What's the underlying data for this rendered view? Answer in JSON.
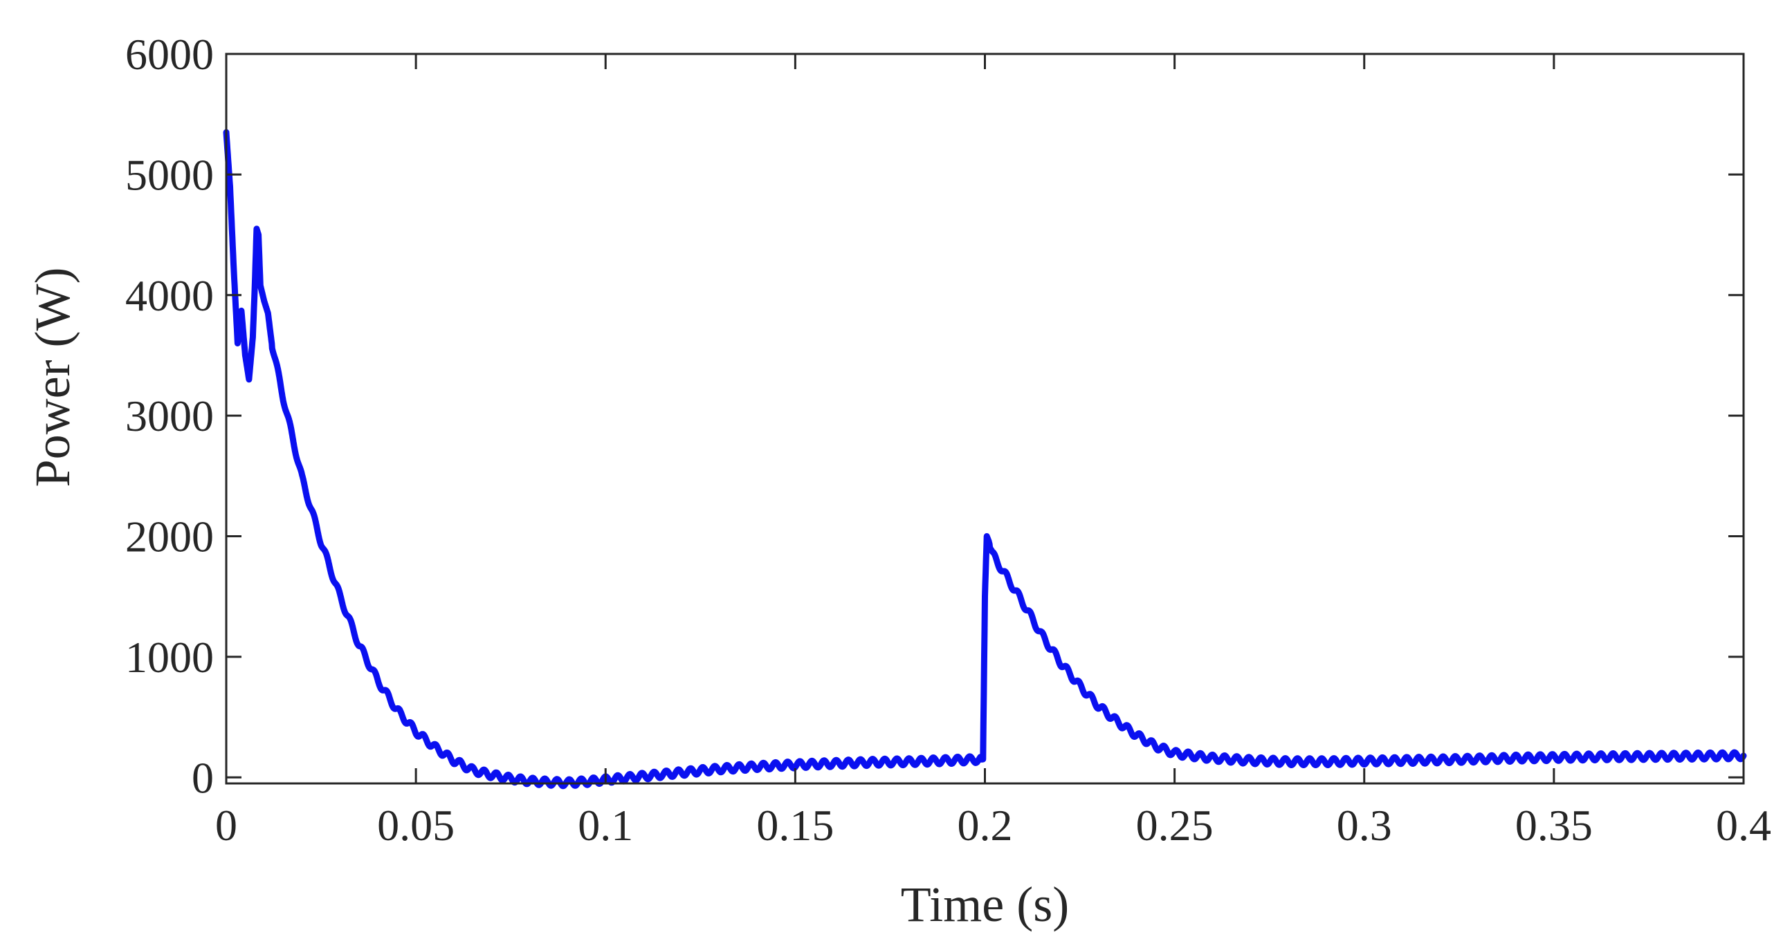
{
  "chart_data": {
    "type": "line",
    "title": "",
    "xlabel": "Time (s)",
    "ylabel": "Power (W)",
    "xlim": [
      0,
      0.4
    ],
    "ylim": [
      -50,
      6000
    ],
    "xticks": [
      0,
      0.05,
      0.1,
      0.15,
      0.2,
      0.25,
      0.3,
      0.35,
      0.4
    ],
    "xtick_labels": [
      "0",
      "0.05",
      "0.1",
      "0.15",
      "0.2",
      "0.25",
      "0.3",
      "0.35",
      "0.4"
    ],
    "yticks": [
      0,
      1000,
      2000,
      3000,
      4000,
      5000,
      6000
    ],
    "ytick_labels": [
      "0",
      "1000",
      "2000",
      "3000",
      "4000",
      "5000",
      "6000"
    ],
    "grid": false,
    "box": true,
    "line_color": "#0a10f0",
    "axis_color": "#262626",
    "series": [
      {
        "x": [
          0,
          0.001,
          0.002,
          0.003,
          0.004,
          0.005,
          0.006,
          0.007,
          0.0075,
          0.008,
          0.0085,
          0.009,
          0.01,
          0.011,
          0.012,
          0.015,
          0.02,
          0.025,
          0.03,
          0.035,
          0.04,
          0.045,
          0.05,
          0.055,
          0.06,
          0.065,
          0.07,
          0.075,
          0.08,
          0.085,
          0.09,
          0.095,
          0.1,
          0.11,
          0.12,
          0.13,
          0.14,
          0.15,
          0.16,
          0.17,
          0.18,
          0.19,
          0.1995,
          0.2,
          0.2005,
          0.201,
          0.2015,
          0.202,
          0.203,
          0.205,
          0.21,
          0.215,
          0.22,
          0.225,
          0.23,
          0.235,
          0.24,
          0.245,
          0.25,
          0.26,
          0.27,
          0.28,
          0.29,
          0.3,
          0.32,
          0.34,
          0.36,
          0.38,
          0.4
        ],
        "y": [
          5350,
          4900,
          4200,
          3600,
          3870,
          3500,
          3300,
          3650,
          4050,
          4550,
          4500,
          4080,
          3950,
          3850,
          3600,
          3150,
          2480,
          1950,
          1500,
          1100,
          800,
          560,
          380,
          250,
          140,
          60,
          20,
          -10,
          -30,
          -40,
          -45,
          -35,
          -20,
          10,
          40,
          70,
          90,
          105,
          115,
          125,
          130,
          140,
          150,
          1500,
          2000,
          1960,
          1900,
          1850,
          1800,
          1700,
          1450,
          1180,
          950,
          760,
          590,
          460,
          350,
          260,
          200,
          160,
          140,
          130,
          130,
          135,
          145,
          160,
          170,
          175,
          180
        ]
      }
    ]
  }
}
